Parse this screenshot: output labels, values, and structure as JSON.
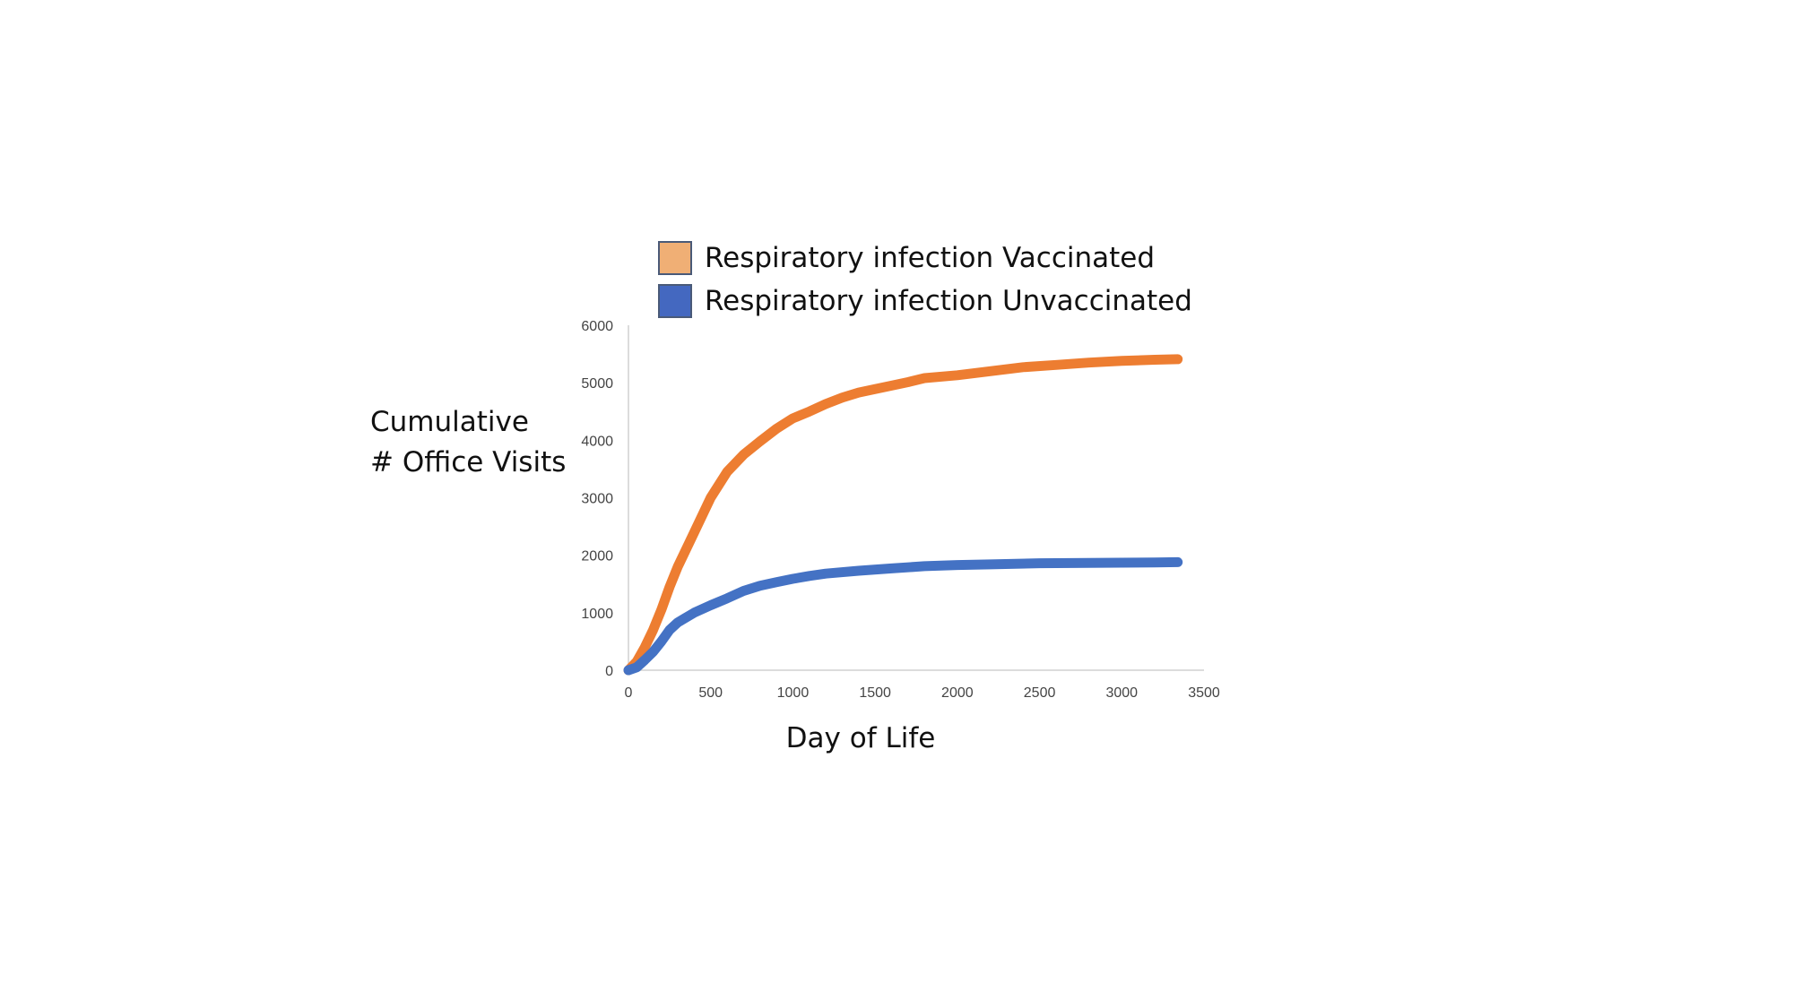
{
  "chart_data": {
    "type": "line",
    "title": "",
    "xlabel": "Day of Life",
    "ylabel_lines": [
      "Cumulative",
      "# Office Visits"
    ],
    "xlim": [
      0,
      3500
    ],
    "ylim": [
      0,
      6000
    ],
    "x_ticks": [
      0,
      500,
      1000,
      1500,
      2000,
      2500,
      3000,
      3500
    ],
    "y_ticks": [
      0,
      1000,
      2000,
      3000,
      4000,
      5000,
      6000
    ],
    "grid": false,
    "legend_position": "top",
    "series": [
      {
        "name": "Respiratory infection Vaccinated",
        "line_color": "#ED7D31",
        "swatch_color": "#F0AF75",
        "x": [
          0,
          50,
          100,
          150,
          200,
          250,
          300,
          400,
          500,
          600,
          700,
          800,
          900,
          1000,
          1100,
          1200,
          1300,
          1400,
          1500,
          1600,
          1700,
          1800,
          2000,
          2200,
          2400,
          2600,
          2800,
          3000,
          3200,
          3340
        ],
        "y": [
          0,
          150,
          400,
          700,
          1050,
          1450,
          1800,
          2400,
          3000,
          3450,
          3750,
          3980,
          4200,
          4380,
          4500,
          4630,
          4740,
          4830,
          4890,
          4950,
          5010,
          5080,
          5130,
          5200,
          5270,
          5310,
          5350,
          5380,
          5400,
          5410
        ]
      },
      {
        "name": "Respiratory infection Unvaccinated",
        "line_color": "#4472C4",
        "swatch_color": "#4468C0",
        "x": [
          0,
          50,
          100,
          150,
          200,
          250,
          300,
          400,
          500,
          600,
          700,
          800,
          900,
          1000,
          1100,
          1200,
          1400,
          1600,
          1800,
          2000,
          2200,
          2500,
          2800,
          3000,
          3200,
          3340
        ],
        "y": [
          0,
          50,
          180,
          320,
          500,
          700,
          830,
          1000,
          1130,
          1250,
          1380,
          1470,
          1530,
          1590,
          1640,
          1680,
          1730,
          1770,
          1810,
          1830,
          1840,
          1860,
          1865,
          1870,
          1875,
          1880
        ]
      }
    ]
  }
}
